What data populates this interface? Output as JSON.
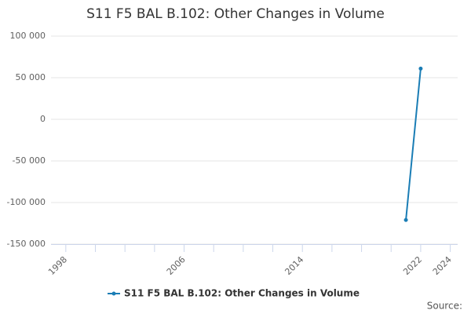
{
  "chart_data": {
    "type": "line",
    "title": "S11 F5 BAL B.102: Other Changes in Volume",
    "x": [
      2021,
      2022
    ],
    "series": [
      {
        "name": "S11 F5 BAL B.102: Other Changes in Volume",
        "color": "#1a7db5",
        "values": [
          -121000,
          61000
        ]
      }
    ],
    "xlim": [
      1997,
      2024.5
    ],
    "xticks": [
      1998,
      2006,
      2014,
      2022,
      2024
    ],
    "xticks_minor": [
      2000,
      2002,
      2004,
      2008,
      2010,
      2012,
      2016,
      2018,
      2020
    ],
    "ylim": [
      -150000,
      100000
    ],
    "yticks": [
      {
        "value": -150000,
        "label": "-150 000"
      },
      {
        "value": -100000,
        "label": "-100 000"
      },
      {
        "value": -50000,
        "label": "-50 000"
      },
      0,
      {
        "value": 50000,
        "label": "50 000"
      },
      {
        "value": 100000,
        "label": "100 000"
      }
    ],
    "grid": true,
    "source": "Source:"
  }
}
